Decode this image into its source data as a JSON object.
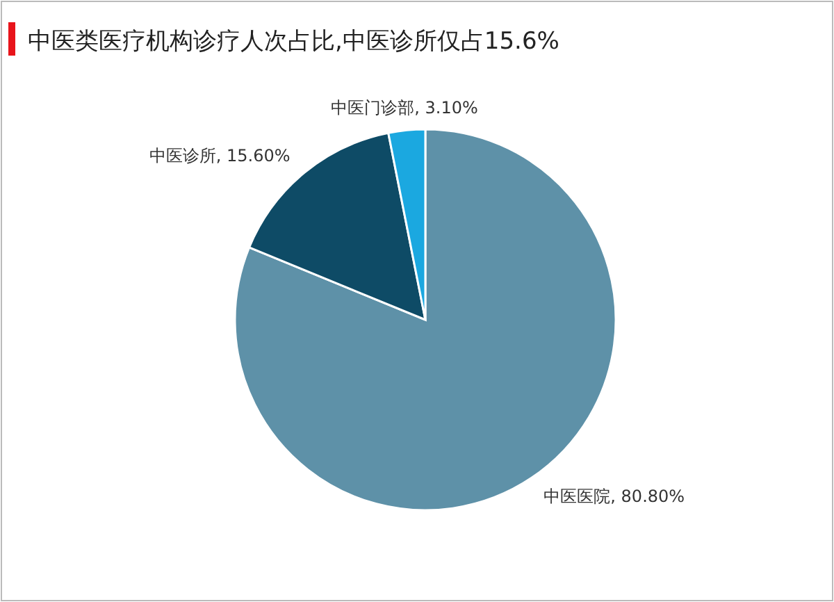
{
  "chart_data": {
    "type": "pie",
    "title": "中医类医疗机构诊疗人次占比,中医诊所仅占15.6%",
    "categories": [
      "中医医院",
      "中医诊所",
      "中医门诊部"
    ],
    "values": [
      80.8,
      15.6,
      3.1
    ],
    "value_labels": [
      "80.80%",
      "15.60%",
      "3.10%"
    ],
    "colors": [
      "#5e91a8",
      "#0e4b66",
      "#1ba8e0"
    ],
    "legend": false
  }
}
